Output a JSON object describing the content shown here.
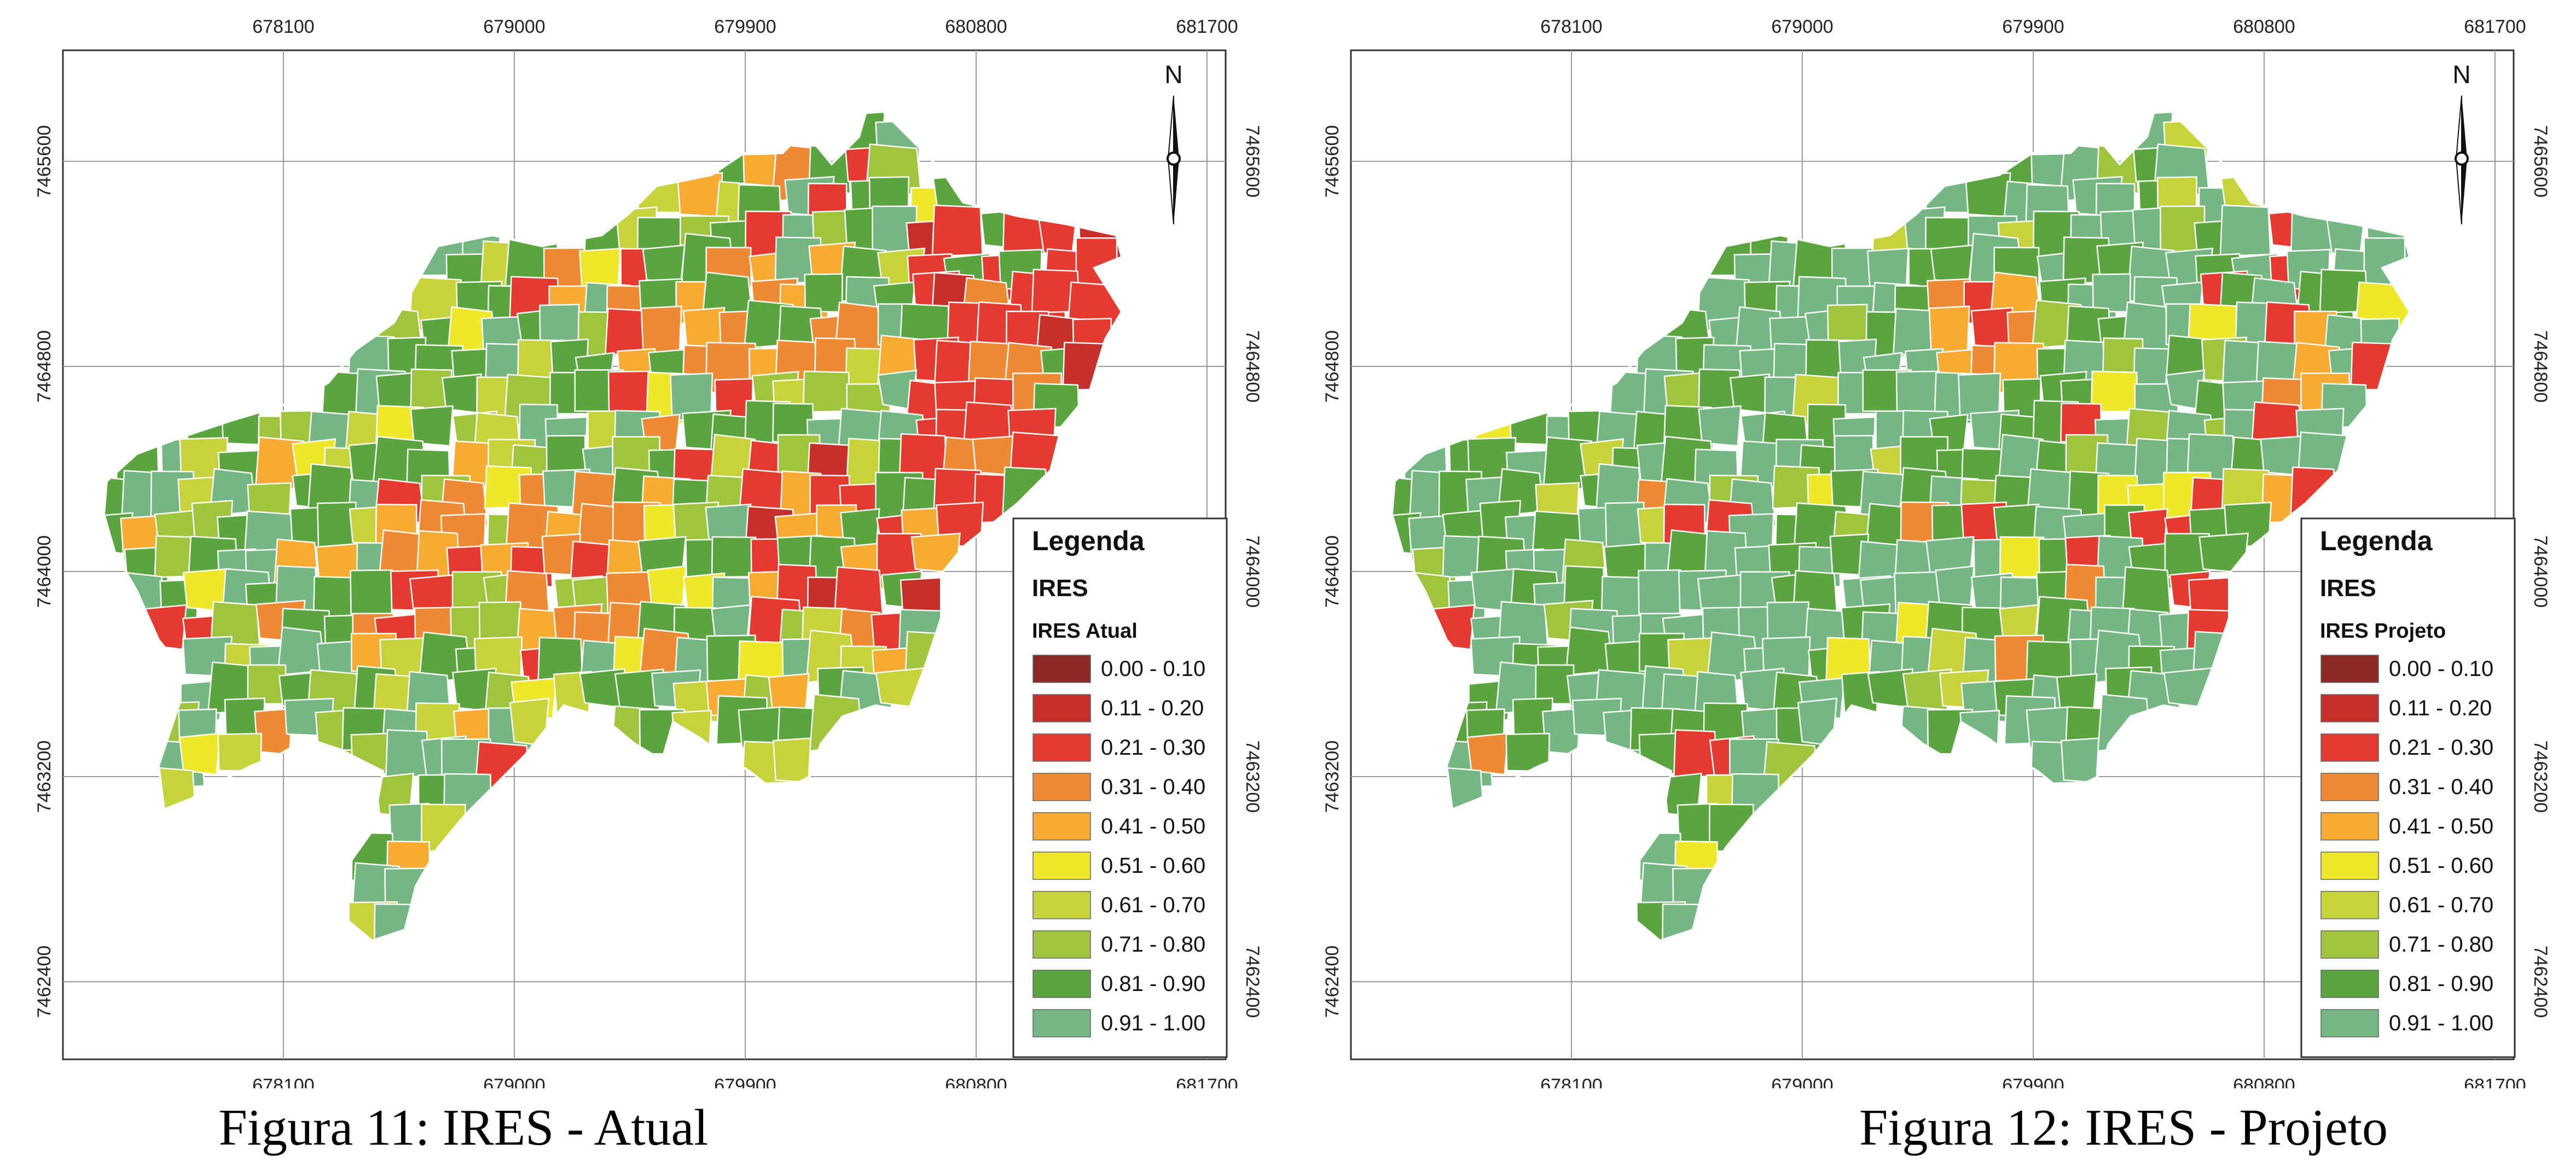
{
  "colors": {
    "class_0": "#8b2a24",
    "class_1": "#c62f2a",
    "class_2": "#e43a2f",
    "class_3": "#ef8a34",
    "class_4": "#f7ab33",
    "class_5": "#eee72a",
    "class_6": "#c6d33a",
    "class_7": "#9ec53d",
    "class_8": "#5aa53f",
    "class_9": "#74b783"
  },
  "axes": {
    "x_ticks": [
      "678100",
      "679000",
      "679900",
      "680800",
      "681700"
    ],
    "y_ticks": [
      "7465600",
      "7464800",
      "7464000",
      "7463200",
      "7462400"
    ]
  },
  "north_label": "N",
  "legend": {
    "title": "Legenda",
    "subtitle": "IRES",
    "classes": [
      "0.00 - 0.10",
      "0.11 - 0.20",
      "0.21 - 0.30",
      "0.31 - 0.40",
      "0.41 - 0.50",
      "0.51 - 0.60",
      "0.61 - 0.70",
      "0.71 - 0.80",
      "0.81 - 0.90",
      "0.91 - 1.00"
    ]
  },
  "maps": [
    {
      "layer_name": "IRES Atual",
      "caption": "Figura 11: IRES - Atual",
      "variant": "atual"
    },
    {
      "layer_name": "IRES Projeto",
      "caption": "Figura 12: IRES - Projeto",
      "variant": "projeto"
    }
  ]
}
